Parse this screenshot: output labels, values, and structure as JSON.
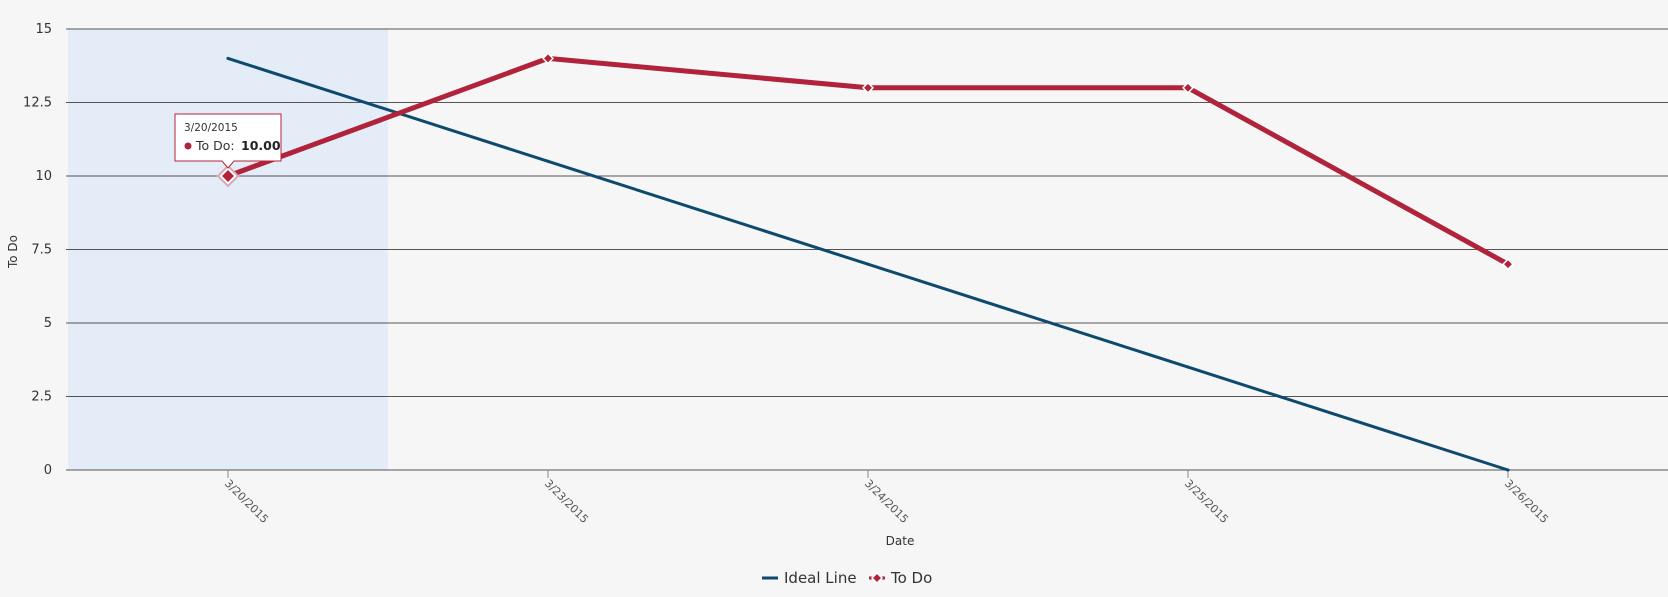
{
  "chart_data": {
    "type": "line",
    "title": "",
    "xlabel": "Date",
    "ylabel": "To Do",
    "categories": [
      "3/20/2015",
      "3/23/2015",
      "3/24/2015",
      "3/25/2015",
      "3/26/2015"
    ],
    "ylim": [
      0,
      15
    ],
    "yticks": [
      "0",
      "2.5",
      "5",
      "7.5",
      "10",
      "12.5",
      "15"
    ],
    "grid": true,
    "legend_position": "bottom",
    "highlighted_category": "3/20/2015",
    "series": [
      {
        "name": "Ideal Line",
        "values": [
          14,
          10.5,
          7,
          3.5,
          0
        ],
        "color": "#0d4a6e",
        "marker": "none"
      },
      {
        "name": "To Do",
        "values": [
          10,
          14,
          13,
          13,
          7
        ],
        "color": "#b0233b",
        "marker": "diamond"
      }
    ],
    "tooltip": {
      "date": "3/20/2015",
      "series": "To Do",
      "label": "To Do:",
      "value": "10.00"
    },
    "colors": {
      "background": "#f6f6f6",
      "highlight_band": "#e3ecf7",
      "grid": "#555555"
    }
  }
}
